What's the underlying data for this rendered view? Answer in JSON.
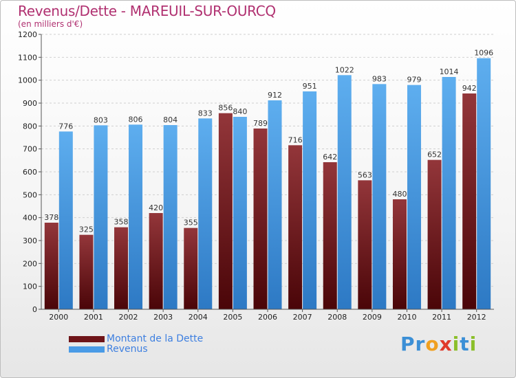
{
  "header": {
    "title": "Revenus/Dette - MAREUIL-SUR-OURCQ",
    "subtitle": "(en milliers d'€)"
  },
  "chart_data": {
    "type": "bar",
    "categories": [
      "2000",
      "2001",
      "2002",
      "2003",
      "2004",
      "2005",
      "2006",
      "2007",
      "2008",
      "2009",
      "2010",
      "2011",
      "2012"
    ],
    "series": [
      {
        "name": "Montant de la Dette",
        "values": [
          378,
          325,
          358,
          420,
          355,
          856,
          789,
          716,
          642,
          563,
          480,
          652,
          942
        ],
        "color": "#7a1c22"
      },
      {
        "name": "Revenus",
        "values": [
          776,
          803,
          806,
          804,
          833,
          840,
          912,
          951,
          1022,
          983,
          979,
          1014,
          1096
        ],
        "color": "#4a9be6"
      }
    ],
    "y_ticks": [
      0,
      100,
      200,
      300,
      400,
      500,
      600,
      700,
      800,
      900,
      1000,
      1100,
      1200
    ],
    "ylim": [
      0,
      1200
    ],
    "grid": true,
    "legend_position": "bottom-left"
  },
  "legend": {
    "items": [
      {
        "label": "Montant de la Dette",
        "color": "#6e1418"
      },
      {
        "label": "Revenus",
        "color": "#4a9be6"
      }
    ]
  },
  "logo": {
    "letters": [
      {
        "ch": "P",
        "color": "#3b8fd6"
      },
      {
        "ch": "r",
        "color": "#3b8fd6"
      },
      {
        "ch": "o",
        "color": "#f0a020"
      },
      {
        "ch": "x",
        "color": "#e03a2a"
      },
      {
        "ch": "i",
        "color": "#8bbf2a"
      },
      {
        "ch": "t",
        "color": "#3b8fd6"
      },
      {
        "ch": "i",
        "color": "#8bbf2a"
      }
    ]
  }
}
